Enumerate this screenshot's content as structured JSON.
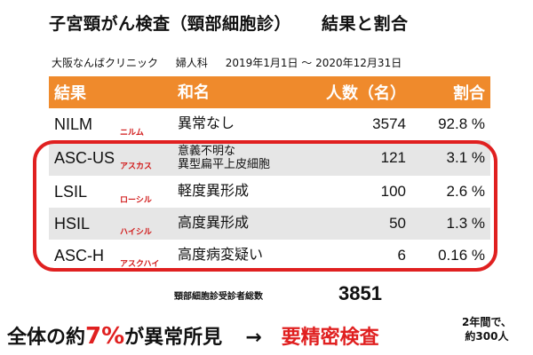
{
  "title": {
    "main": "子宮頸がん検査（頸部細胞診）",
    "result": "結果と割合"
  },
  "subtitle": {
    "clinic": "大阪なんばクリニック",
    "department": "婦人科",
    "period": "2019年1月1日 〜 2020年12月31日"
  },
  "table": {
    "headers": {
      "result": "結果",
      "name": "和名",
      "count": "人数（名）",
      "ratio": "割合"
    },
    "rows": [
      {
        "code": "NILM",
        "reading": "ニルム",
        "name": "異常なし",
        "count": "3574",
        "ratio": "92.8 %"
      },
      {
        "code": "ASC-US",
        "reading": "アスカス",
        "name_line1": "意義不明な",
        "name_line2": "異型扁平上皮細胞",
        "count": "121",
        "ratio": "3.1 %"
      },
      {
        "code": "LSIL",
        "reading": "ローシル",
        "name": "軽度異形成",
        "count": "100",
        "ratio": "2.6 %"
      },
      {
        "code": "HSIL",
        "reading": "ハイシル",
        "name": "高度異形成",
        "count": "50",
        "ratio": "1.3 %"
      },
      {
        "code": "ASC-H",
        "reading": "アスクハイ",
        "name": "高度病変疑い",
        "count": "6",
        "ratio": "0.16 %"
      }
    ]
  },
  "total": {
    "label": "頸部細胞診受診者総数",
    "value": "3851"
  },
  "summary": {
    "prefix": "全体の約",
    "percent": "7%",
    "suffix": "が異常所見",
    "arrow": "→",
    "action": "要精密検査",
    "note_line1": "2年間で、",
    "note_line2": "約300人"
  },
  "colors": {
    "header_bg": "#ef8a2c",
    "accent_red": "#e02020",
    "row_shade": "#e6e6e6"
  }
}
